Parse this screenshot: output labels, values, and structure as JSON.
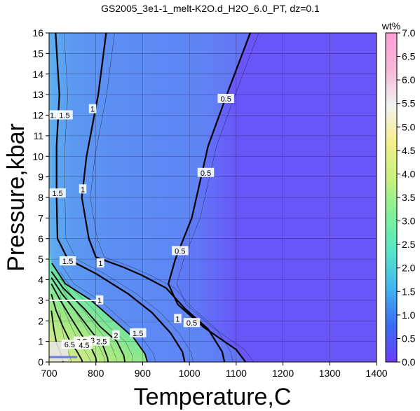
{
  "chart_data": {
    "type": "heatmap",
    "title": "GS2005_3e1-1_melt-K2O.d_H2O_6.0_PT, dz=0.1",
    "xlabel": "Temperature,C",
    "ylabel": "Pressure,kbar",
    "xlim": [
      700,
      1400
    ],
    "ylim": [
      0,
      16
    ],
    "x_ticks": [
      "700",
      "800",
      "900",
      "1000",
      "1100",
      "1200",
      "1300",
      "1400"
    ],
    "y_ticks": [
      "0",
      "1",
      "2",
      "3",
      "4",
      "5",
      "6",
      "7",
      "8",
      "9",
      "10",
      "11",
      "12",
      "13",
      "14",
      "15",
      "16"
    ],
    "grid": true,
    "colorbar": {
      "label": "wt%",
      "range": [
        0,
        7
      ],
      "ticks": [
        "0.0",
        "0.5",
        "1.0",
        "1.5",
        "2.0",
        "2.5",
        "3.0",
        "3.5",
        "4.0",
        "4.5",
        "5.0",
        "5.5",
        "6.0",
        "6.5",
        "7.0"
      ],
      "colors": [
        "#6a3dfa",
        "#3a6bf2",
        "#41b3f0",
        "#55e5c8",
        "#7ef09a",
        "#c6f07d",
        "#f6ee8a",
        "#f2f2f2",
        "#f6b8d8",
        "#ff9fd4"
      ]
    },
    "contours": [
      {
        "level": "0.5",
        "points": [
          [
            1130,
            16
          ],
          [
            1080,
            13
          ],
          [
            1040,
            10.5
          ],
          [
            1005,
            7
          ],
          [
            970,
            5
          ],
          [
            955,
            3.8
          ],
          [
            975,
            2.8
          ],
          [
            1030,
            1.7
          ],
          [
            1100,
            0.6
          ],
          [
            1120,
            0
          ]
        ]
      },
      {
        "level": "1",
        "points": [
          [
            822,
            16
          ],
          [
            805,
            13
          ],
          [
            780,
            10
          ],
          [
            770,
            8
          ],
          [
            785,
            6
          ],
          [
            800,
            5.1
          ],
          [
            860,
            4.6
          ],
          [
            900,
            4.2
          ],
          [
            950,
            3.6
          ],
          [
            990,
            2.6
          ],
          [
            1040,
            1.6
          ],
          [
            1070,
            0.5
          ],
          [
            1075,
            0
          ]
        ]
      },
      {
        "level": "1.5",
        "points": [
          [
            714,
            16
          ],
          [
            722,
            13
          ],
          [
            716,
            10.5
          ],
          [
            716,
            8
          ],
          [
            718,
            6
          ],
          [
            740,
            5
          ],
          [
            800,
            4.3
          ],
          [
            870,
            3.3
          ],
          [
            920,
            2.4
          ],
          [
            960,
            1.4
          ],
          [
            985,
            0.5
          ],
          [
            990,
            0
          ]
        ]
      },
      {
        "level": "2",
        "points": [
          [
            706,
            4.8
          ],
          [
            735,
            3.8
          ],
          [
            790,
            3.0
          ],
          [
            840,
            2.0
          ],
          [
            880,
            1.2
          ],
          [
            905,
            0.4
          ],
          [
            910,
            0
          ]
        ]
      },
      {
        "level": "2.5",
        "points": [
          [
            705,
            4.4
          ],
          [
            730,
            3.6
          ],
          [
            775,
            2.6
          ],
          [
            810,
            1.7
          ],
          [
            845,
            1.0
          ],
          [
            860,
            0.3
          ],
          [
            862,
            0
          ]
        ]
      },
      {
        "level": "3",
        "points": [
          [
            705,
            4.1
          ],
          [
            728,
            3.3
          ],
          [
            760,
            2.4
          ],
          [
            790,
            1.5
          ],
          [
            815,
            0.8
          ],
          [
            825,
            0.2
          ],
          [
            826,
            0
          ]
        ]
      },
      {
        "level": "3.5",
        "points": [
          [
            705,
            3.8
          ],
          [
            724,
            3.0
          ],
          [
            748,
            2.1
          ],
          [
            770,
            1.3
          ],
          [
            790,
            0.7
          ],
          [
            800,
            0.2
          ],
          [
            801,
            0
          ]
        ]
      },
      {
        "level": "4.5",
        "points": [
          [
            705,
            3.3
          ],
          [
            715,
            2.5
          ],
          [
            730,
            1.7
          ],
          [
            745,
            1.0
          ],
          [
            760,
            0.5
          ],
          [
            770,
            0.1
          ],
          [
            771,
            0
          ]
        ]
      },
      {
        "level": "6.5",
        "points": [
          [
            705,
            2.5
          ],
          [
            710,
            1.6
          ],
          [
            716,
            0.9
          ],
          [
            725,
            0.4
          ],
          [
            730,
            0
          ]
        ]
      }
    ],
    "contour_labels": [
      {
        "text": "0.5",
        "x": 1078,
        "y": 12.8
      },
      {
        "text": "0.5",
        "x": 1035,
        "y": 9.2
      },
      {
        "text": "0.5",
        "x": 980,
        "y": 5.4
      },
      {
        "text": "0.5",
        "x": 1005,
        "y": 1.9
      },
      {
        "text": "1",
        "x": 793,
        "y": 12.3
      },
      {
        "text": "1",
        "x": 772,
        "y": 8.4
      },
      {
        "text": "1",
        "x": 810,
        "y": 4.8
      },
      {
        "text": "1",
        "x": 808,
        "y": 3.0
      },
      {
        "text": "1",
        "x": 975,
        "y": 2.1
      },
      {
        "text": "1.5",
        "x": 713,
        "y": 12.0
      },
      {
        "text": "1.5",
        "x": 733,
        "y": 12.0
      },
      {
        "text": "1.5",
        "x": 718,
        "y": 8.2
      },
      {
        "text": "1.5",
        "x": 740,
        "y": 4.9
      },
      {
        "text": "1.5",
        "x": 890,
        "y": 1.4
      },
      {
        "text": "2",
        "x": 843,
        "y": 1.3
      },
      {
        "text": "2.5",
        "x": 812,
        "y": 1.0
      },
      {
        "text": "3",
        "x": 793,
        "y": 1.05
      },
      {
        "text": "3.5",
        "x": 770,
        "y": 1.0
      },
      {
        "text": "4.5",
        "x": 775,
        "y": 0.82
      },
      {
        "text": "6.5",
        "x": 744,
        "y": 0.85
      }
    ]
  }
}
